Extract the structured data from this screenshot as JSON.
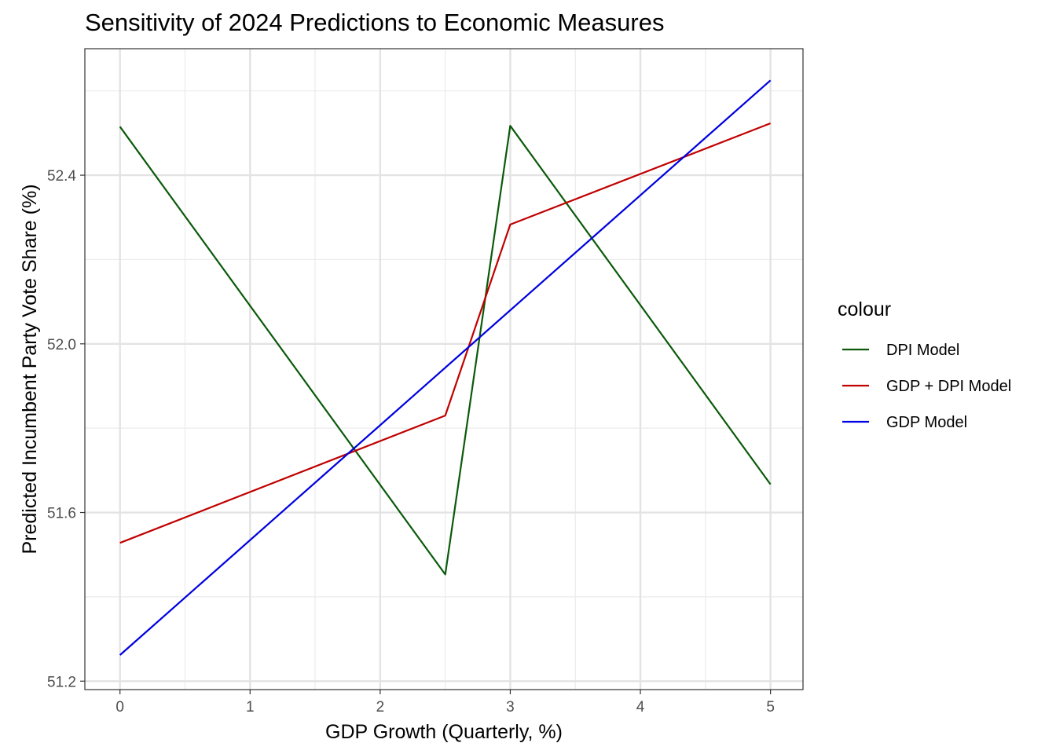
{
  "chart_data": {
    "type": "line",
    "title": "Sensitivity of 2024 Predictions to Economic Measures",
    "xlabel": "GDP Growth (Quarterly, %)",
    "ylabel": "Predicted Incumbent Party Vote Share (%)",
    "xlim": [
      -0.27,
      5.25
    ],
    "ylim": [
      51.18,
      52.7
    ],
    "x_ticks": [
      0,
      1,
      2,
      3,
      4,
      5
    ],
    "x_tick_labels": [
      "0",
      "1",
      "2",
      "3",
      "4",
      "5"
    ],
    "y_ticks": [
      51.2,
      51.6,
      52.0,
      52.4
    ],
    "y_tick_labels": [
      "51.2",
      "51.6",
      "52.0",
      "52.4"
    ],
    "y_minor_ticks": [
      51.4,
      51.8,
      52.2,
      52.6
    ],
    "x_minor_ticks": [
      0.5,
      1.5,
      2.5,
      3.5,
      4.5
    ],
    "grid": true,
    "legend": {
      "title": "colour",
      "position": "right"
    },
    "series": [
      {
        "name": "DPI Model",
        "color": "#0a5a0a",
        "x": [
          0,
          2.5,
          3,
          5
        ],
        "y": [
          52.515,
          51.453,
          52.517,
          51.667
        ]
      },
      {
        "name": "GDP + DPI Model",
        "color": "#c00000",
        "x": [
          0,
          2.5,
          3,
          5
        ],
        "y": [
          51.528,
          51.83,
          52.283,
          52.523
        ]
      },
      {
        "name": "GDP Model",
        "color": "#0000e0",
        "x": [
          0,
          5
        ],
        "y": [
          51.262,
          52.625
        ]
      }
    ]
  }
}
